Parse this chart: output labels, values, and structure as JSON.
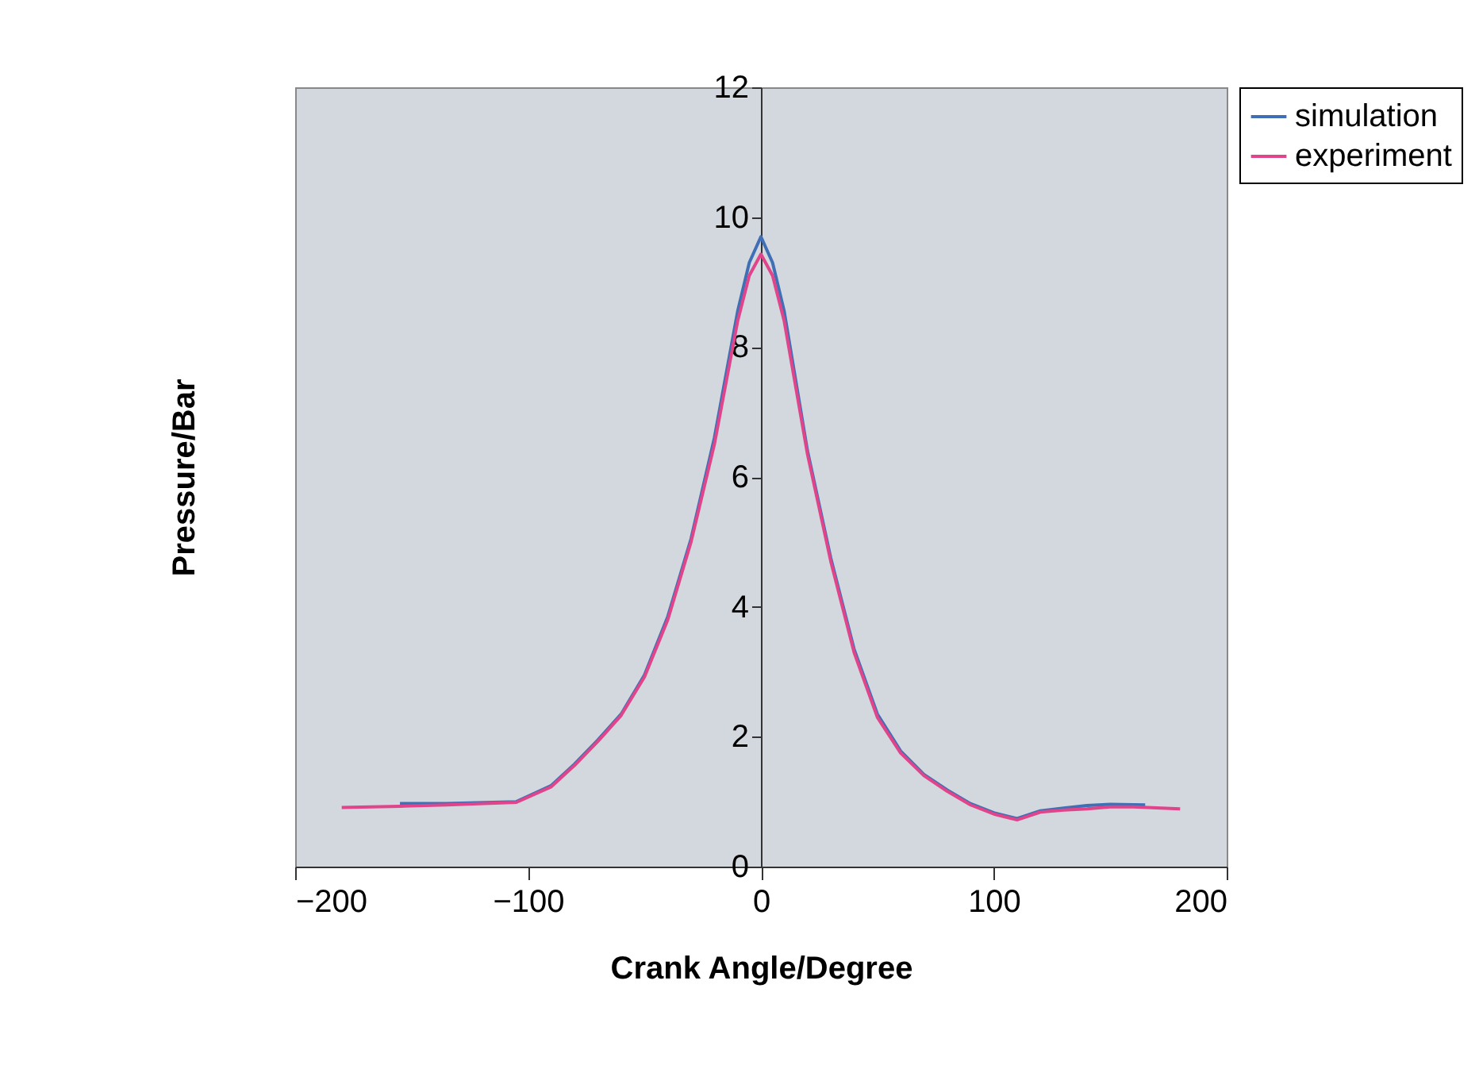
{
  "chart_data": {
    "type": "line",
    "xlabel": "Crank Angle/Degree",
    "ylabel": "Pressure/Bar",
    "xlim": [
      -200,
      200
    ],
    "xticks": [
      -200,
      -100,
      0,
      100,
      200
    ],
    "ylim": [
      0,
      12
    ],
    "yticks": [
      0,
      2,
      4,
      6,
      8,
      10,
      12
    ],
    "grid": false,
    "legend": "right",
    "marker": "none",
    "line_style": "solid",
    "series": [
      {
        "name": "simulation",
        "color": "#3f6fb5",
        "x": [
          -155,
          -135,
          -105,
          -90,
          -80,
          -70,
          -60,
          -50,
          -40,
          -30,
          -20,
          -10,
          -5,
          0,
          5,
          10,
          20,
          30,
          40,
          50,
          60,
          70,
          80,
          90,
          100,
          110,
          120,
          130,
          140,
          150,
          165
        ],
        "values": [
          0.97,
          0.97,
          1.0,
          1.25,
          1.58,
          1.95,
          2.35,
          2.95,
          3.85,
          5.05,
          6.6,
          8.55,
          9.3,
          9.7,
          9.3,
          8.55,
          6.4,
          4.75,
          3.35,
          2.35,
          1.78,
          1.42,
          1.18,
          0.97,
          0.83,
          0.74,
          0.86,
          0.9,
          0.94,
          0.96,
          0.95
        ]
      },
      {
        "name": "experiment",
        "color": "#e0448a",
        "x": [
          -180,
          -155,
          -135,
          -105,
          -90,
          -80,
          -70,
          -60,
          -50,
          -40,
          -30,
          -20,
          -10,
          -5,
          0,
          5,
          10,
          20,
          30,
          40,
          50,
          60,
          70,
          80,
          90,
          100,
          110,
          120,
          130,
          140,
          150,
          160,
          180
        ],
        "values": [
          0.91,
          0.93,
          0.95,
          0.99,
          1.23,
          1.56,
          1.93,
          2.33,
          2.92,
          3.8,
          5.0,
          6.5,
          8.4,
          9.1,
          9.43,
          9.1,
          8.4,
          6.35,
          4.7,
          3.3,
          2.3,
          1.75,
          1.4,
          1.16,
          0.95,
          0.81,
          0.72,
          0.84,
          0.87,
          0.89,
          0.92,
          0.92,
          0.89
        ]
      }
    ]
  }
}
